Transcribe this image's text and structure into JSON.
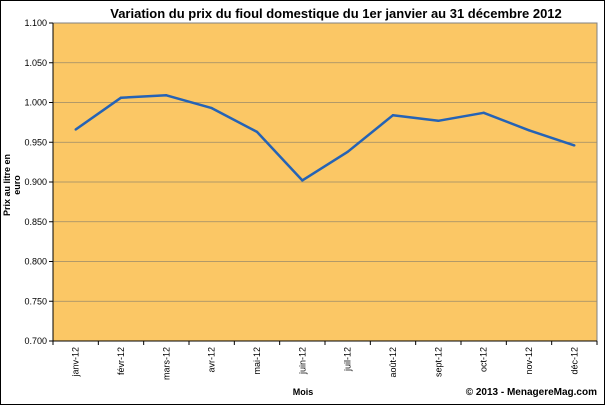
{
  "chart_data": {
    "type": "line",
    "title": "Variation du prix du fioul domestique du 1er janvier au 31 décembre 2012",
    "xlabel": "Mois",
    "ylabel": "Prix au litre en euro",
    "categories": [
      "janv-12",
      "févr-12",
      "mars-12",
      "avr-12",
      "mai-12",
      "juin-12",
      "juil-12",
      "août-12",
      "sept-12",
      "oct-12",
      "nov-12",
      "déc-12"
    ],
    "series": [
      {
        "values": [
          0.966,
          1.006,
          1.009,
          0.993,
          0.963,
          0.902,
          0.938,
          0.984,
          0.977,
          0.987,
          0.965,
          0.946
        ]
      }
    ],
    "ylim": [
      0.7,
      1.1
    ],
    "yticks": [
      "0.700",
      "0.750",
      "0.800",
      "0.850",
      "0.900",
      "0.950",
      "1.000",
      "1.050",
      "1.100"
    ],
    "grid": true,
    "colors": {
      "plot_background": "#FBC765",
      "line": "#2563B5",
      "grid": "#9A8A6A"
    }
  },
  "footer": {
    "copyright": "© 2013 - MenagereMag.com"
  }
}
